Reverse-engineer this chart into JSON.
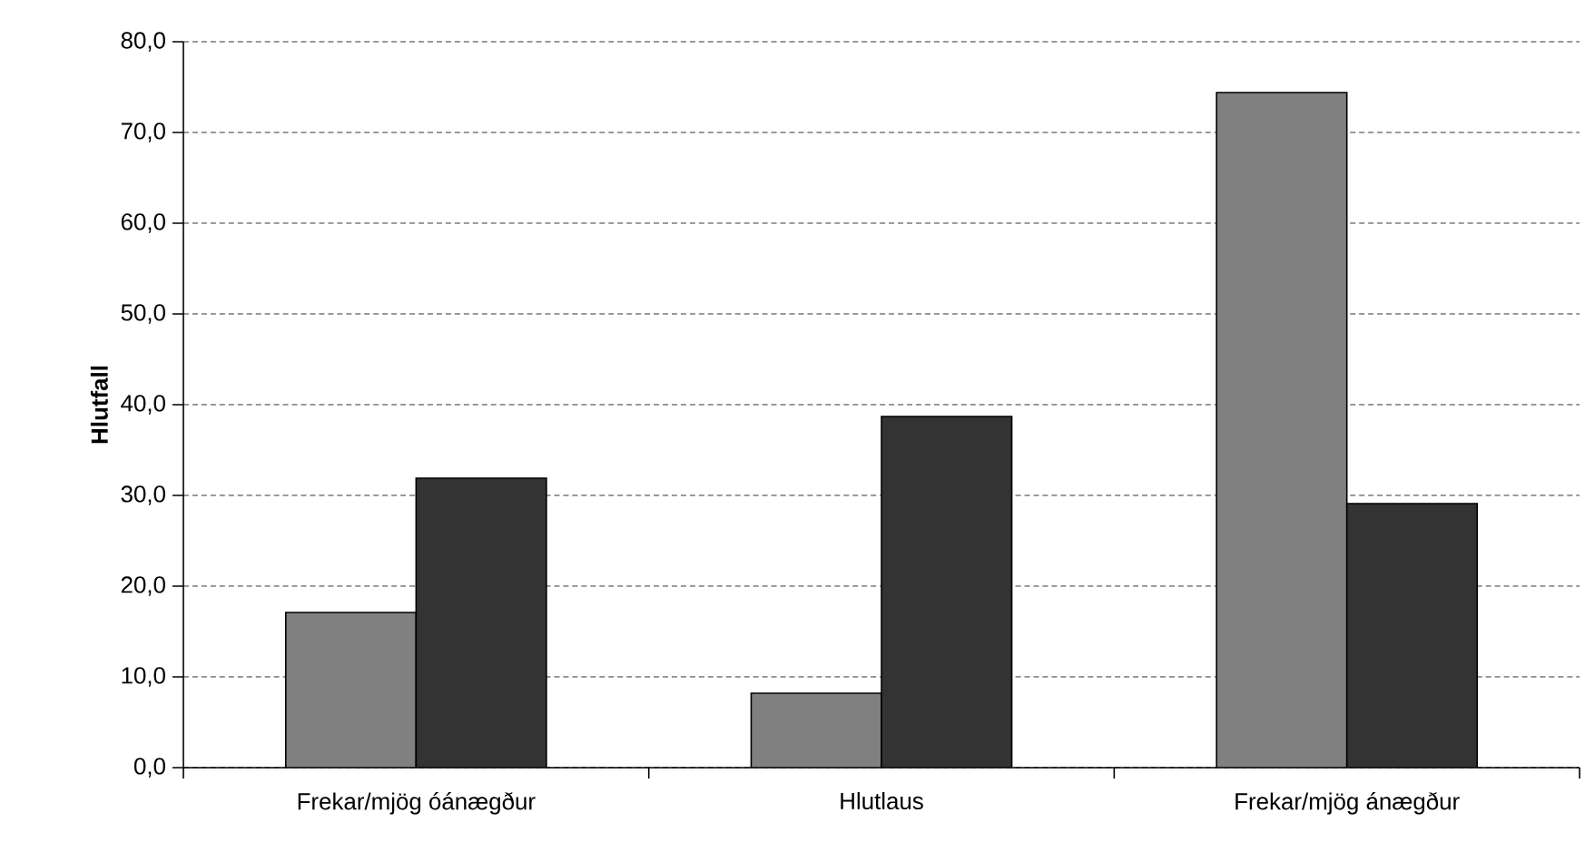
{
  "chart_data": {
    "type": "bar",
    "ylabel": "Hlutfall",
    "categories": [
      "Frekar/mjög óánægður",
      "Hlutlaus",
      "Frekar/mjög ánægður"
    ],
    "series": [
      {
        "color": "#808080",
        "values": [
          17.1,
          8.2,
          74.4
        ]
      },
      {
        "color": "#333333",
        "values": [
          31.9,
          38.7,
          29.1
        ]
      }
    ],
    "ylim": [
      0,
      80
    ],
    "yticks": [
      {
        "value": 0,
        "label": "0,0"
      },
      {
        "value": 10,
        "label": "10,0"
      },
      {
        "value": 20,
        "label": "20,0"
      },
      {
        "value": 30,
        "label": "30,0"
      },
      {
        "value": 40,
        "label": "40,0"
      },
      {
        "value": 50,
        "label": "50,0"
      },
      {
        "value": 60,
        "label": "60,0"
      },
      {
        "value": 70,
        "label": "70,0"
      },
      {
        "value": 80,
        "label": "80,0"
      }
    ],
    "grid": "y"
  }
}
